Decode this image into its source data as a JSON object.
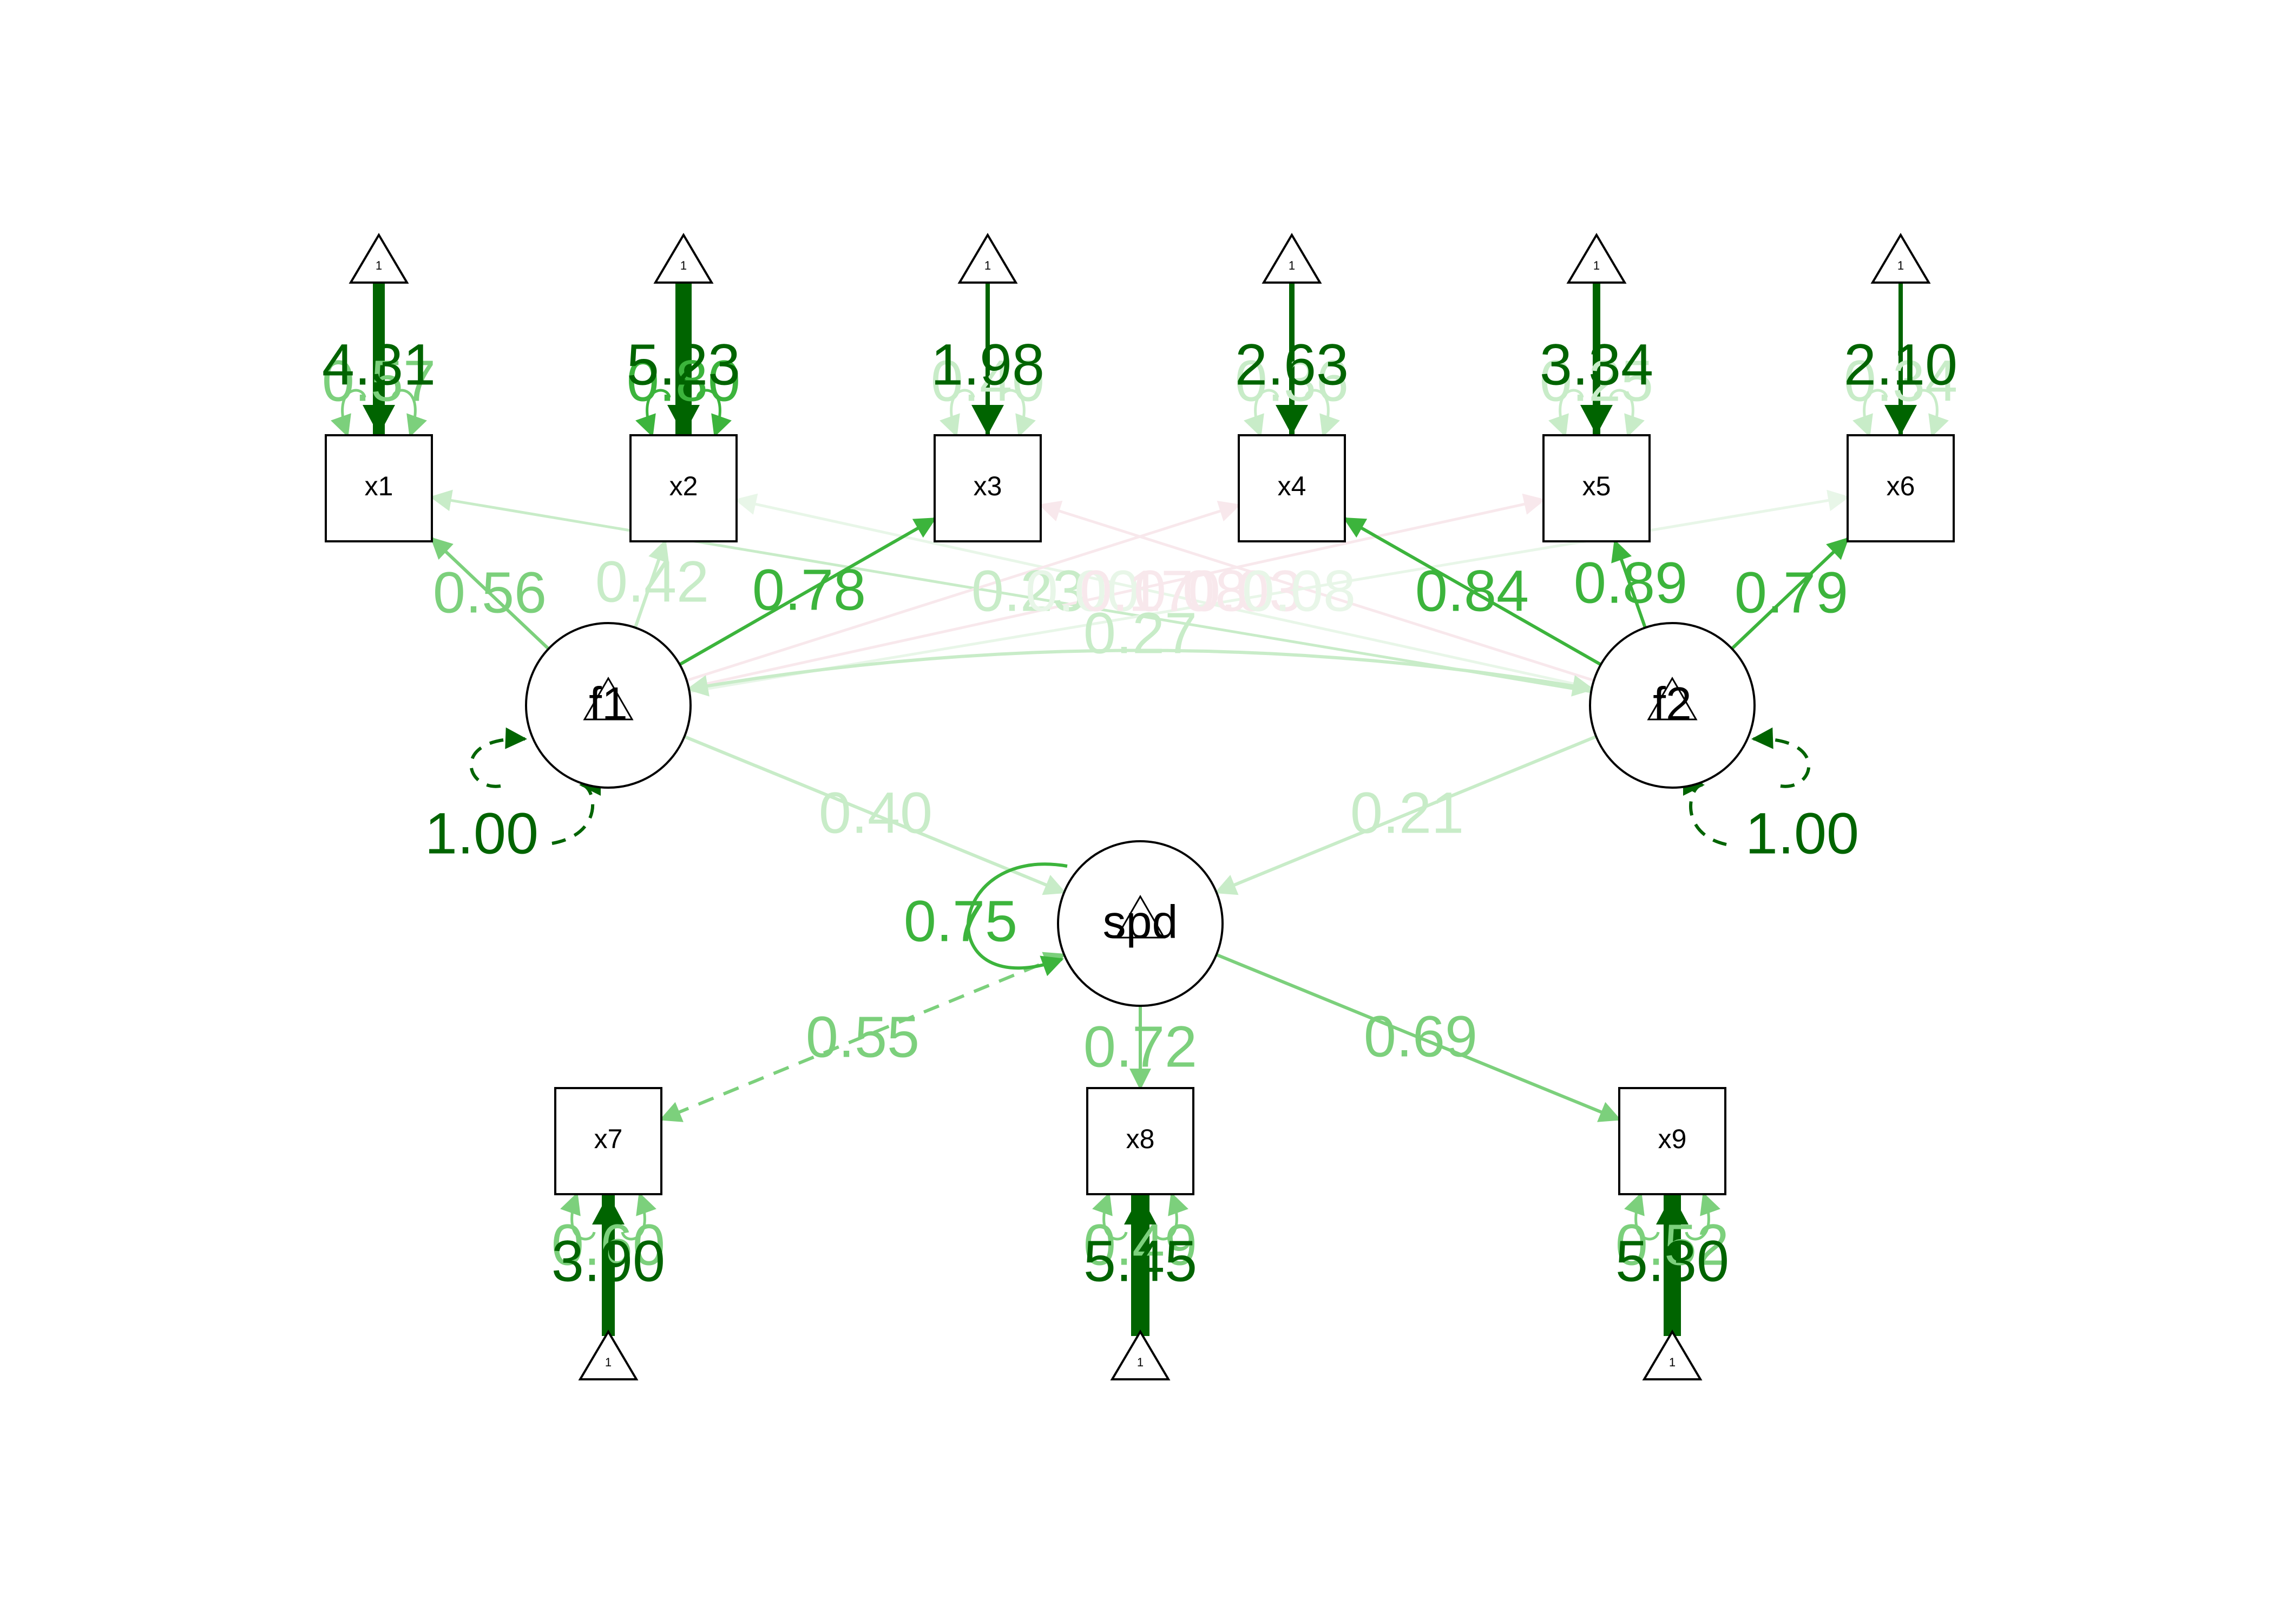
{
  "colors": {
    "dark_green": "#006400",
    "mid_green": "#3cb43c",
    "light_green": "#7cd07c",
    "pale_green": "#c8ecc8",
    "faint_green": "#e8f6e8",
    "faint_pink": "#f8e8ec",
    "node_stroke": "#000000"
  },
  "nodes": {
    "observed": [
      "x1",
      "x2",
      "x3",
      "x4",
      "x5",
      "x6",
      "x7",
      "x8",
      "x9"
    ],
    "latent": [
      "f1",
      "f2",
      "spd"
    ],
    "intercept_symbol": "1"
  },
  "edges": {
    "intercepts": {
      "x1": "4.31",
      "x2": "5.23",
      "x3": "1.98",
      "x4": "2.63",
      "x5": "3.34",
      "x6": "2.10",
      "x7": "3.90",
      "x8": "5.45",
      "x9": "5.30"
    },
    "residual_variances": {
      "x1": "0.57",
      "x2": "0.80",
      "x3": "0.40",
      "x4": "0.36",
      "x5": "0.25",
      "x6": "0.34",
      "x7": "0.60",
      "x8": "0.49",
      "x9": "0.52"
    },
    "loadings": {
      "f1_x1": "0.56",
      "f1_x2": "0.42",
      "f1_x3": "0.78",
      "f2_x4": "0.84",
      "f2_x5": "0.89",
      "f2_x6": "0.79",
      "spd_x8": "0.72",
      "spd_x9": "0.69"
    },
    "cross_loadings": {
      "f2_x1": "0.23",
      "f2_x2": "0.00",
      "f2_x3": "0.17",
      "f1_x4": "0.08",
      "f1_x5": "0.03",
      "f1_x6": "0.08"
    },
    "regressions": {
      "f1_spd": "0.40",
      "f2_spd": "0.21"
    },
    "covariances": {
      "f1_f2": "0.27",
      "spd_x7": "0.55"
    },
    "latent_variances": {
      "f1": "1.00",
      "f2": "1.00",
      "spd": "0.75"
    }
  }
}
